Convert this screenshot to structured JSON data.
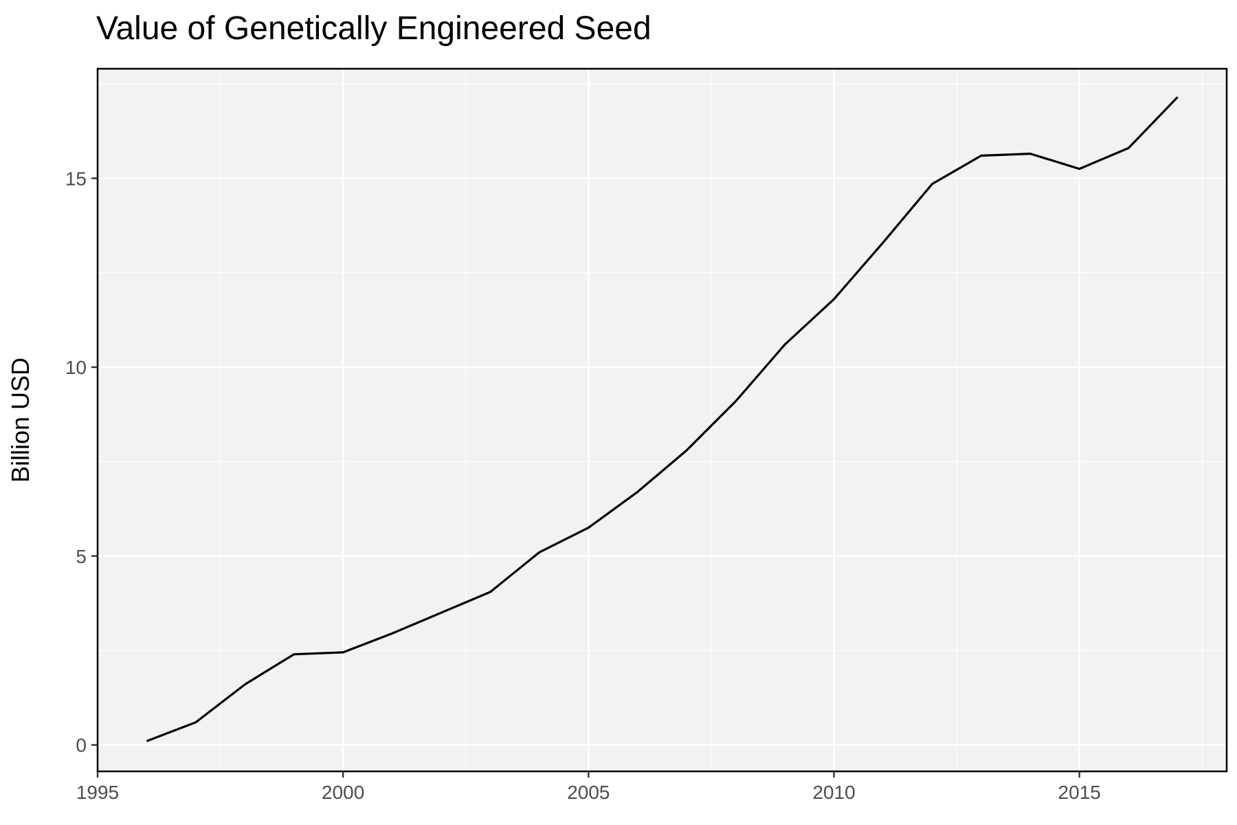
{
  "chart_data": {
    "type": "line",
    "title": "Value of Genetically Engineered Seed",
    "xlabel": "",
    "ylabel": "Billion USD",
    "xlim": [
      1995,
      2018
    ],
    "ylim": [
      -0.7,
      17.9
    ],
    "x_ticks": [
      "1995",
      "2000",
      "2005",
      "2010",
      "2015"
    ],
    "y_ticks": [
      "0",
      "5",
      "10",
      "15"
    ],
    "grid": true,
    "series": [
      {
        "x": [
          1996,
          1997,
          1998,
          1999,
          2000,
          2001,
          2002,
          2003,
          2004,
          2005,
          2006,
          2007,
          2008,
          2009,
          2010,
          2011,
          2012,
          2013,
          2014,
          2015,
          2016,
          2017
        ],
        "values": [
          0.1,
          0.6,
          1.6,
          2.4,
          2.45,
          2.95,
          3.5,
          4.05,
          5.1,
          5.75,
          6.7,
          7.8,
          9.1,
          10.6,
          11.8,
          13.3,
          14.85,
          15.6,
          15.65,
          15.25,
          15.8,
          17.15
        ]
      }
    ],
    "colors": {
      "panel": "#f2f2f2",
      "grid": "#ffffff",
      "line": "#000000",
      "border": "#000000"
    }
  }
}
